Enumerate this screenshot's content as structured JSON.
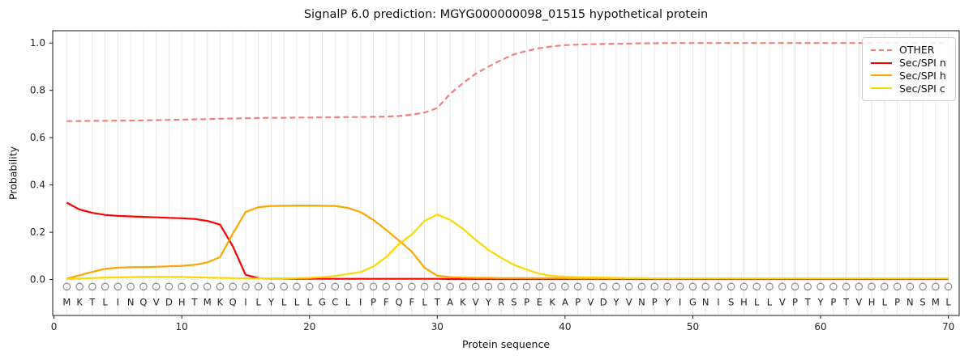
{
  "chart_data": {
    "type": "line",
    "title": "SignalP 6.0 prediction: MGYG000000098_01515 hypothetical protein",
    "xlabel": "Protein sequence",
    "ylabel": "Probability",
    "axes": {
      "xlim": [
        -0.1,
        70.85
      ],
      "ylim": [
        -0.152,
        1.052
      ],
      "x_ticks": [
        0,
        10,
        20,
        30,
        40,
        50,
        60,
        70
      ],
      "y_tick_labels": [
        "0.0",
        "0.2",
        "0.4",
        "0.6",
        "0.8",
        "1.0"
      ],
      "y_tick_values": [
        0.0,
        0.2,
        0.4,
        0.6,
        0.8,
        1.0
      ],
      "grid": "light vertical gridline at every residue position 1-70",
      "legend_position": "upper right"
    },
    "x_start": 1,
    "x_step": 1,
    "sequence": "MKTLINQVDHTMKQILYLLLGCLIPFQFLTAKVYRSPEKAPVDYVNPYIGNISHLLVPTYPTVHLPNSML",
    "sequence_marker": "open gray circle above each residue letter",
    "marker_y": -0.03,
    "letter_y": -0.095,
    "series": [
      {
        "name": "OTHER",
        "color": "#f08080",
        "style": "dashed",
        "values": [
          0.67,
          0.67,
          0.671,
          0.671,
          0.672,
          0.672,
          0.673,
          0.674,
          0.675,
          0.676,
          0.677,
          0.678,
          0.68,
          0.681,
          0.682,
          0.683,
          0.684,
          0.684,
          0.685,
          0.685,
          0.686,
          0.686,
          0.687,
          0.687,
          0.688,
          0.689,
          0.691,
          0.697,
          0.706,
          0.725,
          0.785,
          0.83,
          0.87,
          0.9,
          0.928,
          0.952,
          0.967,
          0.978,
          0.986,
          0.991,
          0.993,
          0.995,
          0.996,
          0.997,
          0.998,
          0.999,
          0.999,
          1.0,
          1.0,
          1.0,
          1.0,
          1.0,
          1.0,
          1.0,
          1.0,
          1.0,
          1.0,
          1.0,
          1.0,
          1.0,
          1.0,
          1.0,
          1.0,
          1.0,
          1.0,
          1.0,
          1.0,
          1.0,
          1.0,
          1.0
        ]
      },
      {
        "name": "Sec/SPI n",
        "color": "#ff0000",
        "style": "solid",
        "values": [
          0.325,
          0.296,
          0.282,
          0.273,
          0.269,
          0.267,
          0.265,
          0.263,
          0.261,
          0.259,
          0.256,
          0.248,
          0.232,
          0.14,
          0.02,
          0.006,
          0.004,
          0.004,
          0.003,
          0.003,
          0.003,
          0.003,
          0.003,
          0.003,
          0.003,
          0.003,
          0.003,
          0.003,
          0.003,
          0.003,
          0.002,
          0.002,
          0.002,
          0.002,
          0.002,
          0.002,
          0.002,
          0.002,
          0.002,
          0.002,
          0.002,
          0.002,
          0.002,
          0.002,
          0.002,
          0.002,
          0.002,
          0.002,
          0.002,
          0.002,
          0.002,
          0.002,
          0.002,
          0.002,
          0.002,
          0.002,
          0.002,
          0.002,
          0.002,
          0.002,
          0.002,
          0.002,
          0.002,
          0.002,
          0.002,
          0.002,
          0.002,
          0.002,
          0.002,
          0.002
        ]
      },
      {
        "name": "Sec/SPI h",
        "color": "#ffa500",
        "style": "solid",
        "values": [
          0.004,
          0.018,
          0.032,
          0.045,
          0.05,
          0.052,
          0.053,
          0.054,
          0.056,
          0.058,
          0.062,
          0.072,
          0.095,
          0.195,
          0.285,
          0.306,
          0.311,
          0.312,
          0.313,
          0.313,
          0.312,
          0.311,
          0.303,
          0.285,
          0.252,
          0.21,
          0.165,
          0.118,
          0.05,
          0.016,
          0.01,
          0.008,
          0.007,
          0.007,
          0.006,
          0.006,
          0.006,
          0.006,
          0.006,
          0.006,
          0.005,
          0.005,
          0.005,
          0.005,
          0.005,
          0.005,
          0.005,
          0.005,
          0.005,
          0.005,
          0.005,
          0.005,
          0.005,
          0.005,
          0.005,
          0.005,
          0.005,
          0.005,
          0.005,
          0.005,
          0.005,
          0.005,
          0.005,
          0.005,
          0.005,
          0.005,
          0.005,
          0.005,
          0.005,
          0.005
        ]
      },
      {
        "name": "Sec/SPI c",
        "color": "#ffd700",
        "style": "solid",
        "values": [
          0.002,
          0.004,
          0.006,
          0.008,
          0.009,
          0.01,
          0.011,
          0.011,
          0.011,
          0.011,
          0.009,
          0.008,
          0.007,
          0.006,
          0.005,
          0.005,
          0.005,
          0.005,
          0.006,
          0.007,
          0.01,
          0.015,
          0.023,
          0.032,
          0.055,
          0.095,
          0.15,
          0.19,
          0.248,
          0.275,
          0.252,
          0.215,
          0.168,
          0.125,
          0.092,
          0.062,
          0.042,
          0.024,
          0.015,
          0.012,
          0.01,
          0.009,
          0.008,
          0.007,
          0.006,
          0.006,
          0.005,
          0.005,
          0.005,
          0.005,
          0.005,
          0.005,
          0.005,
          0.005,
          0.005,
          0.005,
          0.005,
          0.005,
          0.005,
          0.005,
          0.005,
          0.005,
          0.005,
          0.005,
          0.005,
          0.005,
          0.005,
          0.005,
          0.005,
          0.005
        ]
      }
    ]
  },
  "colors": {
    "background": "#ffffff",
    "grid": "#e8e8e8",
    "spine": "#1a1a1a",
    "tick_label": "#262626",
    "marker_circle": "#8a8a8a",
    "residue_letter": "#1f1f1f",
    "legend_border": "#cccccc"
  }
}
